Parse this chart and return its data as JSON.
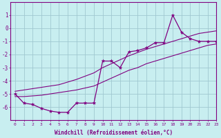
{
  "xlabel": "Windchill (Refroidissement éolien,°C)",
  "background_color": "#c8eef0",
  "grid_color": "#a0c8d0",
  "line_color": "#800080",
  "x_hours": [
    0,
    1,
    2,
    3,
    4,
    5,
    6,
    7,
    8,
    9,
    10,
    11,
    12,
    13,
    14,
    15,
    16,
    17,
    18,
    19,
    20,
    21,
    22,
    23
  ],
  "series_main": [
    -5.0,
    -5.7,
    -5.8,
    -6.1,
    -6.3,
    -6.4,
    -6.4,
    -5.7,
    -5.7,
    -5.7,
    -2.5,
    -2.5,
    -3.0,
    -1.8,
    -1.7,
    -1.5,
    -1.1,
    -1.1,
    1.0,
    -0.3,
    -0.8,
    -1.0,
    -1.0,
    -1.0
  ],
  "series_smooth_low": [
    -5.2,
    -5.2,
    -5.15,
    -5.1,
    -5.0,
    -4.9,
    -4.8,
    -4.7,
    -4.55,
    -4.4,
    -4.1,
    -3.8,
    -3.5,
    -3.2,
    -3.0,
    -2.7,
    -2.5,
    -2.3,
    -2.1,
    -1.9,
    -1.7,
    -1.5,
    -1.3,
    -1.2
  ],
  "series_smooth_high": [
    -4.8,
    -4.7,
    -4.6,
    -4.5,
    -4.4,
    -4.3,
    -4.1,
    -3.9,
    -3.65,
    -3.4,
    -3.0,
    -2.7,
    -2.4,
    -2.1,
    -1.85,
    -1.6,
    -1.4,
    -1.2,
    -1.0,
    -0.8,
    -0.6,
    -0.4,
    -0.3,
    -0.2
  ],
  "ylim": [
    -7,
    2
  ],
  "yticks": [
    1,
    0,
    -1,
    -2,
    -3,
    -4,
    -5,
    -6
  ],
  "xlim": [
    -0.5,
    23
  ],
  "figwidth": 3.2,
  "figheight": 2.0,
  "dpi": 100
}
